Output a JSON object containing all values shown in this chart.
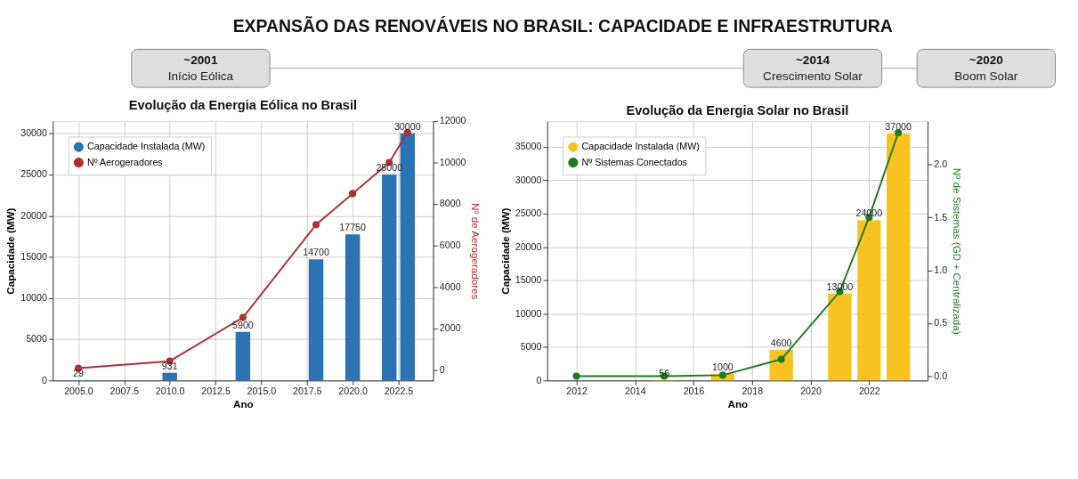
{
  "chart_data": [
    {
      "type": "other",
      "title": "EXPANSÃO DAS RENOVÁVEIS NO BRASIL: CAPACIDADE E INFRAESTRUTURA",
      "annotations": [
        "~2001\nInício Eólica",
        "~2014\nCrescimento Solar",
        "~2020\nBoom Solar"
      ]
    },
    {
      "type": "bar",
      "title": "Evolução da Energia Eólica no Brasil",
      "xlabel": "Ano",
      "ylabel": "Capacidade (MW)",
      "y2label": "Nº de Aerogeradores",
      "x": [
        2005,
        2010,
        2014,
        2018,
        2020,
        2022,
        2023
      ],
      "series": [
        {
          "name": "Capacidade Instalada (MW)",
          "color": "#2c73b4",
          "values": [
            29,
            931,
            5900,
            14700,
            17750,
            25000,
            30000
          ],
          "value_labels": [
            "29",
            "931",
            "5900",
            "14700",
            "17750",
            "25000",
            "30000"
          ]
        },
        {
          "name": "Nº Aerogeradores",
          "type": "line",
          "axis": "y2",
          "color": "#b03030",
          "values": [
            70,
            410,
            2520,
            7000,
            8500,
            10000,
            11450
          ]
        }
      ],
      "xlim": [
        2003.6,
        2024.4
      ],
      "xticks": [
        {
          "value": 2005,
          "label": "2005.0"
        },
        {
          "value": 2007.5,
          "label": "2007.5"
        },
        {
          "value": 2010,
          "label": "2010.0"
        },
        {
          "value": 2012.5,
          "label": "2012.5"
        },
        {
          "value": 2015,
          "label": "2015.0"
        },
        {
          "value": 2017.5,
          "label": "2017.5"
        },
        {
          "value": 2020,
          "label": "2020.0"
        },
        {
          "value": 2022.5,
          "label": "2022.5"
        }
      ],
      "ylim": [
        0,
        31500
      ],
      "yticks": [
        0,
        5000,
        10000,
        15000,
        20000,
        25000,
        30000
      ],
      "y2lim": [
        -520,
        12000
      ],
      "y2ticks": [
        0,
        2000,
        4000,
        6000,
        8000,
        10000,
        12000
      ],
      "grid": true,
      "legend": "top left",
      "marker": "circle"
    },
    {
      "type": "bar",
      "title": "Evolução da Energia Solar no Brasil",
      "xlabel": "Ano",
      "ylabel": "Capacidade (MW)",
      "y2label": "Nº de Sistemas (GD + Centralizada)",
      "x": [
        2015,
        2017,
        2019,
        2021,
        2022,
        2023
      ],
      "series": [
        {
          "name": "Capacidade Instalada (MW)",
          "color": "#f9c31f",
          "values": [
            56,
            1000,
            4600,
            13000,
            24000,
            37000
          ],
          "value_labels": [
            "56",
            "1000",
            "4600",
            "13000",
            "24000",
            "37000"
          ]
        },
        {
          "name": "Nº Sistemas Conectados",
          "type": "line",
          "axis": "y2",
          "color": "#1f7a1f",
          "x": [
            2012,
            2015,
            2017,
            2019,
            2021,
            2022,
            2023
          ],
          "values": [
            0.0,
            0.0,
            0.01,
            0.16,
            0.8,
            1.5,
            2.3
          ]
        }
      ],
      "xlim": [
        2011.0,
        2024.0
      ],
      "xticks": [
        2012,
        2014,
        2016,
        2018,
        2020,
        2022
      ],
      "ylim": [
        0,
        38850
      ],
      "yticks": [
        0,
        5000,
        10000,
        15000,
        20000,
        25000,
        30000,
        35000
      ],
      "y2lim": [
        -0.04,
        2.41
      ],
      "y2ticks": [
        {
          "value": 0,
          "label": "0.0"
        },
        {
          "value": 0.5,
          "label": "0.5"
        },
        {
          "value": 1,
          "label": "1.0"
        },
        {
          "value": 1.5,
          "label": "1.5"
        },
        {
          "value": 2,
          "label": "2.0"
        }
      ],
      "grid": true,
      "legend": "top left",
      "marker": "circle"
    }
  ]
}
